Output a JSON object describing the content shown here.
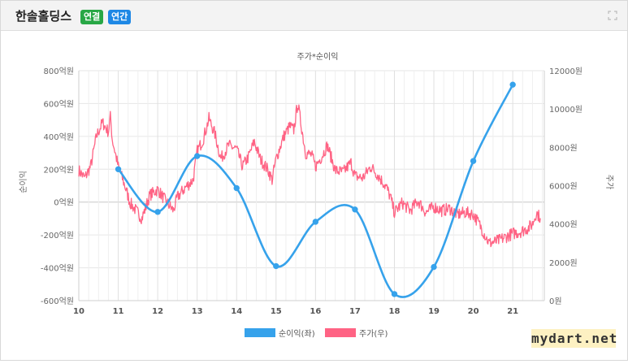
{
  "header": {
    "company": "한솔홀딩스",
    "badge_consolidated": "연결",
    "badge_annual": "연간",
    "badge_consolidated_color": "#28a745",
    "badge_annual_color": "#1e88e5",
    "expand_icon": "expand-icon"
  },
  "watermark": "mydart.net",
  "chart_data": {
    "type": "line",
    "title": "주가*순이익",
    "x_ticks": [
      "10",
      "11",
      "12",
      "13",
      "14",
      "15",
      "16",
      "17",
      "18",
      "19",
      "20",
      "21"
    ],
    "x_range": [
      10,
      21.8
    ],
    "y_left": {
      "label": "순이익",
      "range": [
        -600,
        800
      ],
      "ticks": [
        -600,
        -400,
        -200,
        0,
        200,
        400,
        600,
        800
      ],
      "tick_labels": [
        "-600억원",
        "-400억원",
        "-200억원",
        "0억원",
        "200억원",
        "400억원",
        "600억원",
        "800억원"
      ]
    },
    "y_right": {
      "label": "주가",
      "range": [
        0,
        12000
      ],
      "ticks": [
        0,
        2000,
        4000,
        6000,
        8000,
        10000,
        12000
      ],
      "tick_labels": [
        "0원",
        "2000원",
        "4000원",
        "6000원",
        "8000원",
        "10000원",
        "12000원"
      ]
    },
    "grid": true,
    "legend_position": "bottom",
    "series": [
      {
        "name": "순이익(좌)",
        "axis": "left",
        "color": "#36a2eb",
        "x": [
          11,
          12,
          13,
          14,
          15,
          16,
          17,
          18,
          19,
          20,
          21
        ],
        "values": [
          200,
          -60,
          280,
          85,
          -390,
          -120,
          -45,
          -560,
          -395,
          250,
          715
        ]
      },
      {
        "name": "주가(우)",
        "axis": "right",
        "color": "#ff6384",
        "x": [
          10,
          10.15,
          10.3,
          10.45,
          10.6,
          10.75,
          10.8,
          10.85,
          11,
          11.15,
          11.3,
          11.45,
          11.6,
          11.8,
          12,
          12.2,
          12.4,
          12.5,
          12.7,
          12.9,
          13,
          13.15,
          13.3,
          13.45,
          13.6,
          13.8,
          14,
          14.15,
          14.3,
          14.45,
          14.6,
          14.8,
          14.9,
          15,
          15.2,
          15.35,
          15.45,
          15.55,
          15.65,
          15.75,
          15.9,
          16,
          16.15,
          16.3,
          16.5,
          16.7,
          16.9,
          17,
          17.2,
          17.4,
          17.6,
          17.8,
          17.9,
          18,
          18.2,
          18.4,
          18.6,
          18.8,
          19,
          19.2,
          19.4,
          19.6,
          19.8,
          20,
          20.15,
          20.25,
          20.4,
          20.6,
          20.8,
          21,
          21.2,
          21.4,
          21.5,
          21.6,
          21.7
        ],
        "values": [
          6800,
          6400,
          7000,
          8600,
          9300,
          8800,
          9600,
          8400,
          7000,
          6100,
          5100,
          4700,
          4300,
          5500,
          5800,
          5200,
          4700,
          5400,
          5900,
          6300,
          7800,
          8400,
          9500,
          8700,
          7400,
          8100,
          7900,
          7000,
          7500,
          8300,
          7400,
          6800,
          6300,
          7400,
          8600,
          9100,
          8900,
          10300,
          9000,
          7700,
          7600,
          7000,
          7500,
          8100,
          6800,
          6700,
          7200,
          6500,
          6400,
          7000,
          6500,
          5900,
          5400,
          4600,
          5100,
          4700,
          5200,
          4600,
          4900,
          4700,
          4800,
          4500,
          4600,
          4500,
          4000,
          3600,
          3000,
          3100,
          3300,
          3500,
          3600,
          3800,
          4000,
          4600,
          4300
        ]
      }
    ]
  }
}
